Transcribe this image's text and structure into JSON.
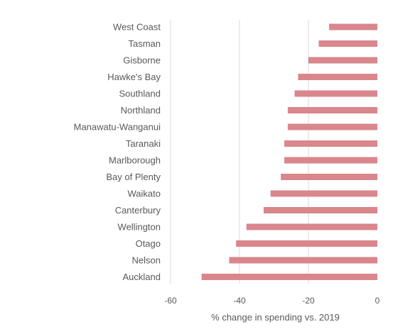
{
  "chart_data": {
    "type": "bar",
    "orientation": "horizontal",
    "title": "",
    "xlabel": "% change in spending vs. 2019",
    "ylabel": "",
    "xlim": [
      -60,
      0
    ],
    "xticks": [
      -60,
      -40,
      -20,
      0
    ],
    "xtick_labels": [
      "-60",
      "-40",
      "-20",
      "0"
    ],
    "grid": "vertical gridlines",
    "bar_color": "#d9868c",
    "categories": [
      "West Coast",
      "Tasman",
      "Gisborne",
      "Hawke's Bay",
      "Southland",
      "Northland",
      "Manawatu-Wanganui",
      "Taranaki",
      "Marlborough",
      "Bay of Plenty",
      "Waikato",
      "Canterbury",
      "Wellington",
      "Otago",
      "Nelson",
      "Auckland"
    ],
    "values": [
      -14,
      -17,
      -20,
      -23,
      -24,
      -26,
      -26,
      -27,
      -27,
      -28,
      -31,
      -33,
      -38,
      -41,
      -43,
      -51
    ]
  }
}
